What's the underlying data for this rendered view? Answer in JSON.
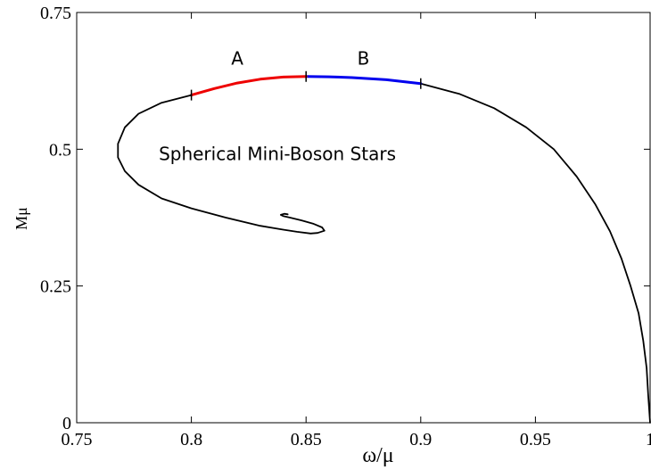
{
  "chart_data": {
    "type": "line",
    "xlabel": "ω/μ",
    "ylabel": "Mμ",
    "xlim": [
      0.75,
      1.0
    ],
    "ylim": [
      0,
      0.75
    ],
    "xticks": [
      0.75,
      0.8,
      0.85,
      0.9,
      0.95,
      1.0
    ],
    "xtick_labels": [
      "0.75",
      "0.8",
      "0.85",
      "0.9",
      "0.95",
      "1"
    ],
    "yticks": [
      0,
      0.25,
      0.5,
      0.75
    ],
    "ytick_labels": [
      "0",
      "0.25",
      "0.5",
      "0.75"
    ],
    "grid": false,
    "annotations": [
      {
        "text": "A",
        "x": 0.82,
        "y": 0.655
      },
      {
        "text": "B",
        "x": 0.875,
        "y": 0.655
      },
      {
        "text": "Spherical Mini-Boson Stars",
        "x": 0.8375,
        "y": 0.48
      }
    ],
    "segment_markers_x": [
      0.8,
      0.85,
      0.9
    ],
    "series": [
      {
        "color": "#000000",
        "points": [
          [
            1.0,
            0.0
          ],
          [
            0.9992,
            0.05
          ],
          [
            0.9985,
            0.1
          ],
          [
            0.997,
            0.15
          ],
          [
            0.995,
            0.2
          ],
          [
            0.9915,
            0.25
          ],
          [
            0.9875,
            0.3
          ],
          [
            0.9825,
            0.35
          ],
          [
            0.976,
            0.4
          ],
          [
            0.968,
            0.45
          ],
          [
            0.958,
            0.5
          ],
          [
            0.946,
            0.54
          ],
          [
            0.932,
            0.575
          ],
          [
            0.917,
            0.601
          ],
          [
            0.9,
            0.62
          ]
        ]
      },
      {
        "color": "#0000ee",
        "points": [
          [
            0.9,
            0.62
          ],
          [
            0.885,
            0.627
          ],
          [
            0.87,
            0.631
          ],
          [
            0.86,
            0.6325
          ],
          [
            0.85,
            0.633
          ]
        ]
      },
      {
        "color": "#ee0000",
        "points": [
          [
            0.85,
            0.633
          ],
          [
            0.84,
            0.632
          ],
          [
            0.83,
            0.628
          ],
          [
            0.82,
            0.621
          ],
          [
            0.81,
            0.611
          ],
          [
            0.8,
            0.599
          ]
        ]
      },
      {
        "color": "#000000",
        "points": [
          [
            0.8,
            0.599
          ],
          [
            0.787,
            0.585
          ],
          [
            0.777,
            0.565
          ],
          [
            0.771,
            0.54
          ],
          [
            0.768,
            0.51
          ],
          [
            0.768,
            0.485
          ],
          [
            0.771,
            0.46
          ],
          [
            0.777,
            0.435
          ],
          [
            0.787,
            0.41
          ],
          [
            0.8,
            0.392
          ],
          [
            0.815,
            0.375
          ],
          [
            0.83,
            0.36
          ],
          [
            0.84,
            0.353
          ],
          [
            0.846,
            0.349
          ],
          [
            0.852,
            0.346
          ],
          [
            0.855,
            0.347
          ],
          [
            0.858,
            0.351
          ],
          [
            0.857,
            0.357
          ],
          [
            0.853,
            0.364
          ],
          [
            0.848,
            0.37
          ],
          [
            0.843,
            0.375
          ],
          [
            0.84,
            0.378
          ],
          [
            0.839,
            0.38
          ],
          [
            0.8405,
            0.382
          ],
          [
            0.842,
            0.381
          ]
        ]
      }
    ]
  }
}
